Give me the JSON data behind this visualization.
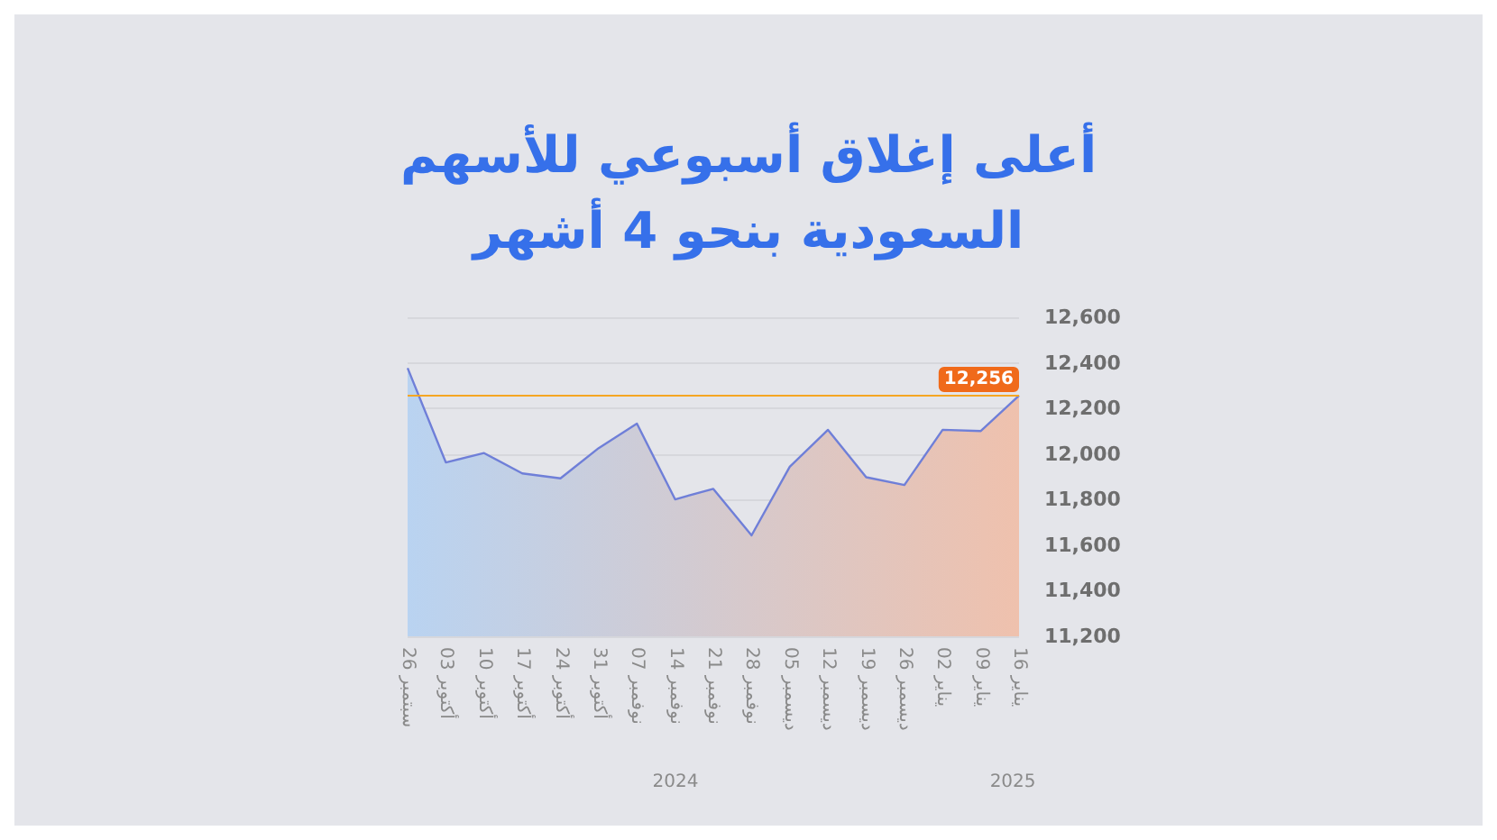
{
  "chart_data": {
    "type": "area",
    "title": "أعلى إغلاق أسبوعي للأسهم\nالسعودية بنحو 4 أشهر",
    "categories": [
      "26 سبتمبر",
      "03 أكتوبر",
      "10 أكتوبر",
      "17 أكتوبر",
      "24 أكتوبر",
      "31 أكتوبر",
      "07 نوفمبر",
      "14 نوفمبر",
      "21 نوفمبر",
      "28 نوفمبر",
      "05 ديسمبر",
      "12 ديسمبر",
      "19 ديسمبر",
      "26 ديسمبر",
      "02 يناير",
      "09 يناير",
      "16 يناير"
    ],
    "series": [
      {
        "color": "#6f7fd8",
        "values": [
          12377,
          11963,
          12004,
          11915,
          11893,
          12026,
          12133,
          11801,
          11847,
          11643,
          11944,
          12106,
          11898,
          11864,
          12106,
          12101,
          12256
        ]
      }
    ],
    "ylim": [
      11200,
      12600
    ],
    "yticks": [
      {
        "value": 11200,
        "label": "11,200"
      },
      {
        "value": 11400,
        "label": "11,400"
      },
      {
        "value": 11600,
        "label": "11,600"
      },
      {
        "value": 11800,
        "label": "11,800"
      },
      {
        "value": 12000,
        "label": "12,000"
      },
      {
        "value": 12200,
        "label": "12,200"
      },
      {
        "value": 12400,
        "label": "12,400"
      },
      {
        "value": 12600,
        "label": "12,600"
      }
    ],
    "ref_lines": [
      {
        "axis": "y",
        "value": 12256,
        "label": "12,256",
        "color": "#f5a623"
      }
    ],
    "annotations": [
      "2024",
      "2025"
    ],
    "grid": "y",
    "marker": "none",
    "line_style": "solid"
  }
}
